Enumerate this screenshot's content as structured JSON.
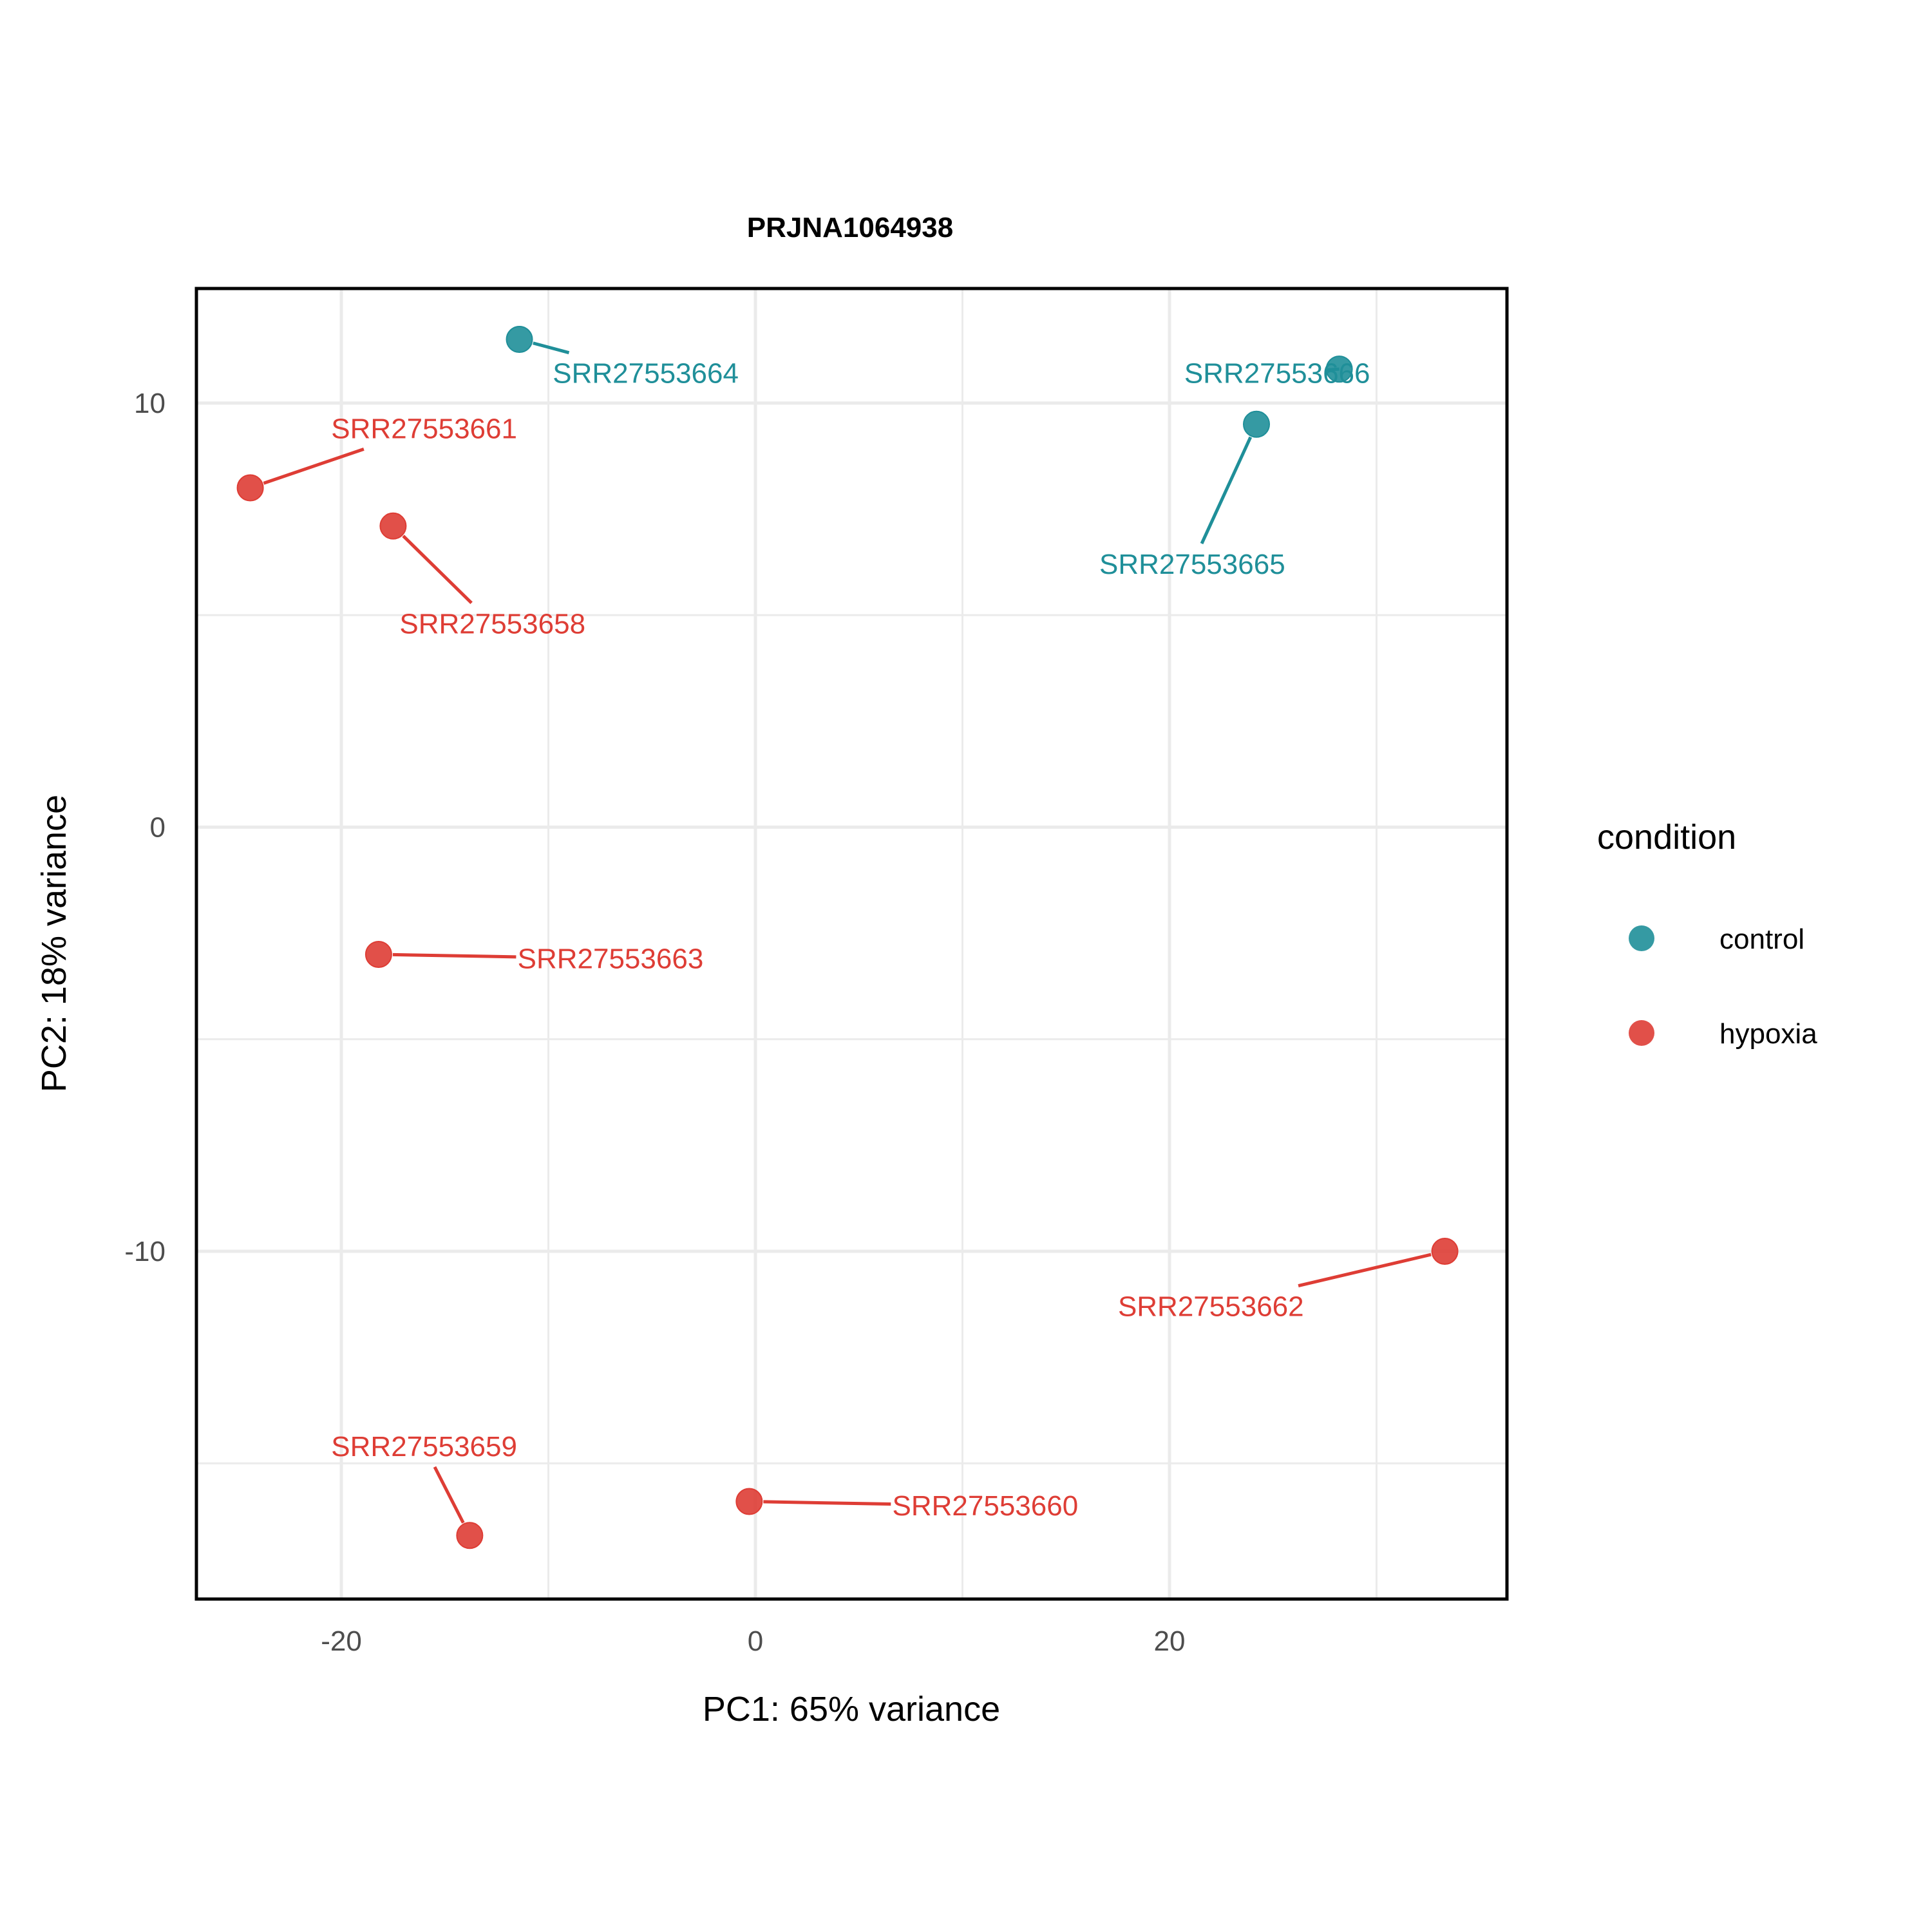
{
  "chart_data": {
    "type": "scatter",
    "title": "PRJNA1064938",
    "xlabel": "PC1: 65% variance",
    "ylabel": "PC2: 18% variance",
    "xlim": [
      -27,
      36.3
    ],
    "ylim": [
      -18.2,
      12.7
    ],
    "x_ticks": [
      -20,
      0,
      20
    ],
    "y_ticks": [
      -10,
      0,
      10
    ],
    "grid": true,
    "legend": {
      "title": "condition",
      "position": "right",
      "items": [
        {
          "label": "control",
          "color": "#1f8f99"
        },
        {
          "label": "hypoxia",
          "color": "#de3d35"
        }
      ]
    },
    "points": [
      {
        "label": "SRR27553664",
        "x": -11.4,
        "y": 11.5,
        "group": "control",
        "label_x": -5.3,
        "label_y": 10.7
      },
      {
        "label": "SRR27553666",
        "x": 28.2,
        "y": 10.8,
        "group": "control",
        "label_x": 25.2,
        "label_y": 10.7
      },
      {
        "label": "SRR27553665",
        "x": 24.2,
        "y": 9.5,
        "group": "control",
        "label_x": 21.1,
        "label_y": 6.2
      },
      {
        "label": "SRR27553661",
        "x": -24.4,
        "y": 8.0,
        "group": "hypoxia",
        "label_x": -16.0,
        "label_y": 9.4
      },
      {
        "label": "SRR27553658",
        "x": -17.5,
        "y": 7.1,
        "group": "hypoxia",
        "label_x": -12.7,
        "label_y": 4.8
      },
      {
        "label": "SRR27553663",
        "x": -18.2,
        "y": -3.0,
        "group": "hypoxia",
        "label_x": -7.0,
        "label_y": -3.1
      },
      {
        "label": "SRR27553662",
        "x": 33.3,
        "y": -10.0,
        "group": "hypoxia",
        "label_x": 22.0,
        "label_y": -11.3
      },
      {
        "label": "SRR27553659",
        "x": -13.8,
        "y": -16.7,
        "group": "hypoxia",
        "label_x": -16.0,
        "label_y": -14.6
      },
      {
        "label": "SRR27553660",
        "x": -0.3,
        "y": -15.9,
        "group": "hypoxia",
        "label_x": 11.1,
        "label_y": -16.0
      }
    ]
  }
}
